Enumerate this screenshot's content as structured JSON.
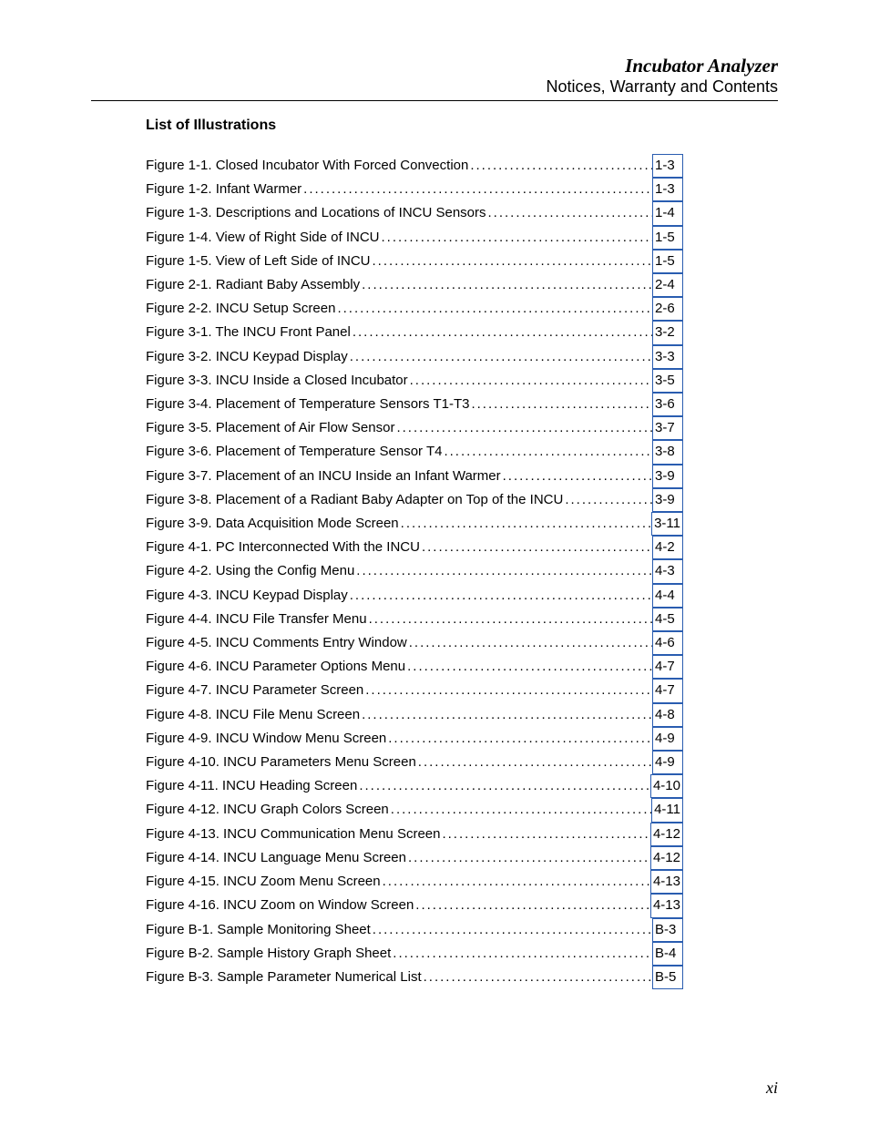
{
  "header": {
    "title": "Incubator Analyzer",
    "subtitle": "Notices, Warranty and Contents"
  },
  "section_title": "List of Illustrations",
  "page_number": "xi",
  "link_border_color": "#2a5db0",
  "entries": [
    {
      "label": "Figure 1-1. Closed Incubator With Forced Convection",
      "page": "1-3"
    },
    {
      "label": "Figure 1-2. Infant Warmer",
      "page": "1-3"
    },
    {
      "label": "Figure 1-3. Descriptions and Locations of INCU Sensors",
      "page": "1-4"
    },
    {
      "label": "Figure 1-4. View of Right Side of INCU",
      "page": "1-5"
    },
    {
      "label": "Figure 1-5. View of Left Side of INCU",
      "page": "1-5"
    },
    {
      "label": "Figure 2-1. Radiant Baby Assembly",
      "page": "2-4"
    },
    {
      "label": "Figure 2-2. INCU Setup Screen",
      "page": "2-6"
    },
    {
      "label": "Figure 3-1. The INCU Front Panel",
      "page": "3-2"
    },
    {
      "label": "Figure 3-2. INCU Keypad Display",
      "page": "3-3"
    },
    {
      "label": "Figure 3-3. INCU Inside a Closed Incubator",
      "page": "3-5"
    },
    {
      "label": "Figure 3-4. Placement of Temperature Sensors T1-T3",
      "page": "3-6"
    },
    {
      "label": "Figure 3-5. Placement of Air Flow Sensor",
      "page": "3-7"
    },
    {
      "label": "Figure 3-6. Placement of Temperature Sensor T4",
      "page": "3-8"
    },
    {
      "label": "Figure 3-7. Placement of an INCU Inside an Infant Warmer",
      "page": "3-9"
    },
    {
      "label": "Figure 3-8. Placement of a Radiant Baby Adapter on Top of the INCU",
      "page": "3-9"
    },
    {
      "label": "Figure 3-9. Data Acquisition Mode Screen",
      "page": "3-11"
    },
    {
      "label": "Figure 4-1. PC Interconnected With the INCU",
      "page": "4-2"
    },
    {
      "label": "Figure 4-2. Using the Config Menu",
      "page": "4-3"
    },
    {
      "label": "Figure 4-3. INCU Keypad Display",
      "page": "4-4"
    },
    {
      "label": "Figure 4-4. INCU File Transfer Menu",
      "page": "4-5"
    },
    {
      "label": "Figure 4-5. INCU Comments Entry Window",
      "page": "4-6"
    },
    {
      "label": "Figure 4-6. INCU Parameter Options Menu",
      "page": "4-7"
    },
    {
      "label": "Figure 4-7. INCU Parameter Screen",
      "page": "4-7"
    },
    {
      "label": "Figure 4-8. INCU File Menu Screen",
      "page": "4-8"
    },
    {
      "label": "Figure 4-9. INCU Window Menu Screen",
      "page": "4-9"
    },
    {
      "label": "Figure 4-10. INCU Parameters Menu Screen",
      "page": "4-9"
    },
    {
      "label": "Figure 4-11. INCU Heading Screen",
      "page": "4-10"
    },
    {
      "label": "Figure 4-12. INCU Graph Colors Screen",
      "page": "4-11"
    },
    {
      "label": "Figure 4-13. INCU Communication Menu Screen",
      "page": "4-12"
    },
    {
      "label": "Figure 4-14. INCU Language Menu Screen",
      "page": "4-12"
    },
    {
      "label": "Figure 4-15. INCU Zoom Menu Screen",
      "page": "4-13"
    },
    {
      "label": "Figure 4-16. INCU Zoom on Window Screen",
      "page": "4-13"
    },
    {
      "label": "Figure B-1. Sample Monitoring Sheet",
      "page": "B-3"
    },
    {
      "label": "Figure B-2. Sample History Graph Sheet",
      "page": "B-4"
    },
    {
      "label": "Figure B-3. Sample Parameter Numerical List",
      "page": "B-5"
    }
  ]
}
